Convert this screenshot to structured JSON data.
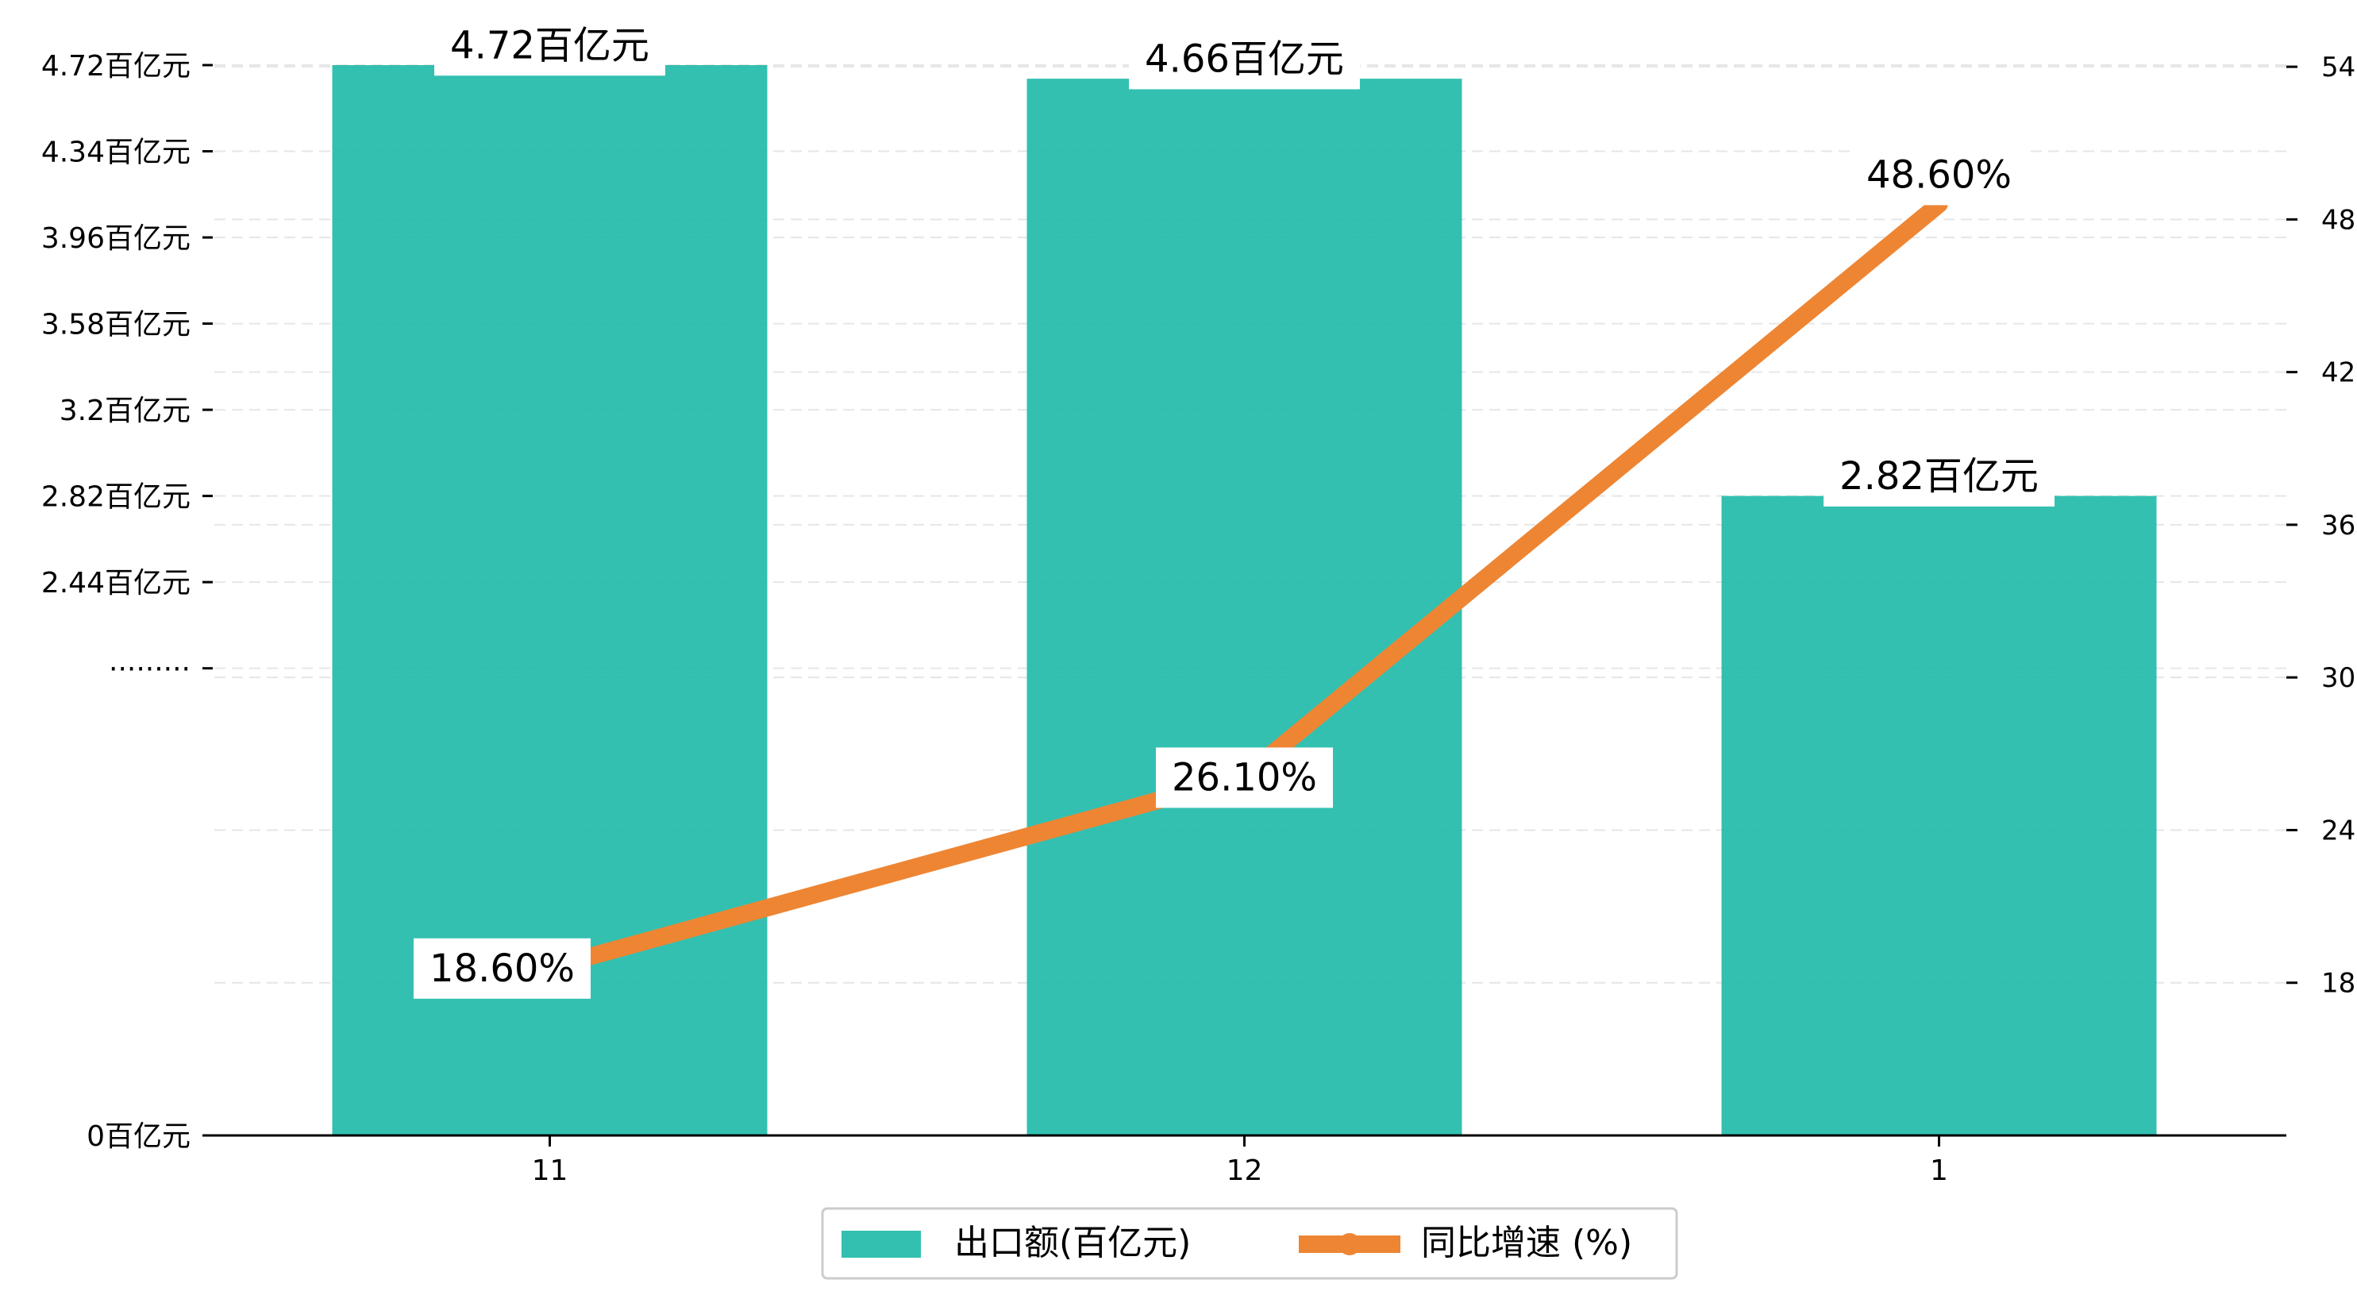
{
  "chart_data": {
    "type": "bar",
    "categories": [
      "11",
      "12",
      "1"
    ],
    "series": [
      {
        "name": "出口额(百亿元)",
        "type": "bar",
        "axis": "left",
        "values": [
          4.72,
          4.66,
          2.82
        ],
        "labels": [
          "4.72百亿元",
          "4.66百亿元",
          "2.82百亿元"
        ],
        "color": "#1db9a8"
      },
      {
        "name": "同比增速 (%)",
        "type": "line",
        "axis": "right",
        "values": [
          18.6,
          26.1,
          48.6
        ],
        "labels": [
          "18.60%",
          "26.10%",
          "48.60%"
        ],
        "color": "#ee8533"
      }
    ],
    "y_left": {
      "ticks": [
        0,
        2.06,
        2.44,
        2.82,
        3.2,
        3.58,
        3.96,
        4.34,
        4.72
      ],
      "tick_labels": [
        "0百亿元",
        "·········",
        "2.44百亿元",
        "2.82百亿元",
        "3.2百亿元",
        "3.58百亿元",
        "3.96百亿元",
        "4.34百亿元",
        "4.72百亿元"
      ]
    },
    "y_right": {
      "range": [
        12,
        56
      ],
      "ticks": [
        18,
        24,
        30,
        36,
        42,
        48,
        54
      ],
      "tick_labels": [
        "18",
        "24",
        "30",
        "36",
        "42",
        "48",
        "54"
      ]
    },
    "grid": true,
    "legend_position": "bottom-center",
    "title": "",
    "xlabel": "",
    "ylabel": ""
  }
}
